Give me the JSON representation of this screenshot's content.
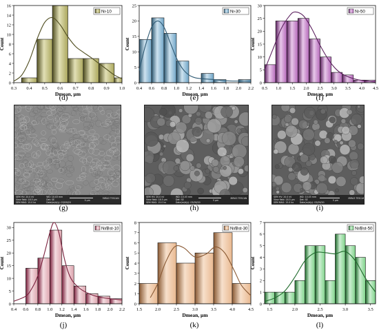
{
  "figure": {
    "panel_labels": [
      "(d)",
      "(e)",
      "(f)",
      "(g)",
      "(h)",
      "(i)",
      "(j)",
      "(k)",
      "(l)"
    ],
    "sem_images": [
      {
        "label": "(g)",
        "info_left_1": "SEM HV: 20.0 kV",
        "info_left_2": "View field: 18.5 µm",
        "info_left_3": "SEM MAG: 15.0 kx",
        "info_mid_1": "WD: 10.03 mm",
        "info_mid_2": "Det: SE",
        "info_mid_3": "Date(m/d/y): 03/09/20",
        "scale": "5 µm",
        "brand": "MIRA3 TESCAN"
      },
      {
        "label": "(h)",
        "info_left_1": "SEM HV: 20.0 kV",
        "info_left_2": "View field: 18.5 µm",
        "info_left_3": "SEM MAG: 15.0 kx",
        "info_mid_1": "WD: 10.03 mm",
        "info_mid_2": "Det: SE",
        "info_mid_3": "Date(m/d/y): 03/09/20",
        "scale": "5 µm",
        "brand": "MIRA3 TESCAN"
      },
      {
        "label": "(i)",
        "info_left_1": "SEM HV: 20.0 kV",
        "info_left_2": "View field: 18.5 µm",
        "info_left_3": "SEM MAG: 15.0 kx",
        "info_mid_1": "WD: 10.03 mm",
        "info_mid_2": "Det: SE",
        "info_mid_3": "Date(m/d/y): 03/09/20",
        "scale": "5 µm",
        "brand": "MIRA3 TESCAN"
      }
    ]
  },
  "chart_data": [
    {
      "type": "bar",
      "label": "(d)",
      "legend": "Ni-10",
      "xlabel": "Dmean, µm",
      "ylabel": "Count",
      "xlim": [
        0.3,
        1.0
      ],
      "ylim": [
        0,
        16
      ],
      "xticks": [
        "0.3",
        "0.4",
        "0.5",
        "0.6",
        "0.7",
        "0.8",
        "0.9",
        "1.0"
      ],
      "yticks": [
        "0",
        "2",
        "4",
        "6",
        "8",
        "10",
        "12",
        "14",
        "16"
      ],
      "bins": [
        [
          0.35,
          0.45,
          1
        ],
        [
          0.45,
          0.55,
          9
        ],
        [
          0.55,
          0.65,
          16
        ],
        [
          0.65,
          0.75,
          5
        ],
        [
          0.75,
          0.85,
          5
        ],
        [
          0.85,
          0.95,
          4
        ],
        [
          0.95,
          1.0,
          1
        ]
      ],
      "curve": [
        [
          0.3,
          0.3
        ],
        [
          0.35,
          1.5
        ],
        [
          0.4,
          4.5
        ],
        [
          0.45,
          9
        ],
        [
          0.5,
          12.5
        ],
        [
          0.55,
          13.5
        ],
        [
          0.6,
          12
        ],
        [
          0.65,
          9.5
        ],
        [
          0.7,
          7.5
        ],
        [
          0.75,
          6.3
        ],
        [
          0.8,
          5.2
        ],
        [
          0.85,
          4
        ],
        [
          0.9,
          2.8
        ],
        [
          0.95,
          1.6
        ],
        [
          1.0,
          0.8
        ]
      ],
      "color": "#aaa65c",
      "dark": "#514f22",
      "light": "#e2e0b6"
    },
    {
      "type": "bar",
      "label": "(e)",
      "legend": "Ni-30",
      "xlabel": "Dmean, µm",
      "ylabel": "Count",
      "xlim": [
        0.4,
        2.2
      ],
      "ylim": [
        0,
        25
      ],
      "xticks": [
        "0.4",
        "0.6",
        "0.8",
        "1.0",
        "1.2",
        "1.4",
        "1.6",
        "1.8",
        "2.0",
        "2.2"
      ],
      "yticks": [
        "0",
        "5",
        "10",
        "15",
        "20",
        "25"
      ],
      "bins": [
        [
          0.4,
          0.6,
          14
        ],
        [
          0.6,
          0.8,
          21
        ],
        [
          0.8,
          1.0,
          16
        ],
        [
          1.0,
          1.2,
          7
        ],
        [
          1.2,
          1.4,
          0
        ],
        [
          1.4,
          1.6,
          3
        ],
        [
          1.6,
          1.8,
          1
        ],
        [
          1.8,
          2.0,
          0
        ],
        [
          2.0,
          2.2,
          1
        ]
      ],
      "curve": [
        [
          0.4,
          4
        ],
        [
          0.5,
          12
        ],
        [
          0.6,
          18
        ],
        [
          0.7,
          20
        ],
        [
          0.8,
          18
        ],
        [
          0.9,
          13
        ],
        [
          1.0,
          8
        ],
        [
          1.1,
          4.5
        ],
        [
          1.2,
          2.5
        ],
        [
          1.3,
          1.6
        ],
        [
          1.4,
          1.3
        ],
        [
          1.6,
          1
        ],
        [
          1.8,
          0.6
        ],
        [
          2.0,
          0.5
        ],
        [
          2.2,
          0.5
        ]
      ],
      "color": "#6fa5c7",
      "dark": "#2f5a74",
      "light": "#cde2ef"
    },
    {
      "type": "bar",
      "label": "(f)",
      "legend": "Ni-50",
      "xlabel": "Dmean, µm",
      "ylabel": "Count",
      "xlim": [
        0.5,
        4.5
      ],
      "ylim": [
        0,
        30
      ],
      "xticks": [
        "0.5",
        "1.0",
        "1.5",
        "2.0",
        "2.5",
        "3.0",
        "3.5",
        "4.0",
        "4.5"
      ],
      "yticks": [
        "0",
        "5",
        "10",
        "15",
        "20",
        "25",
        "30"
      ],
      "bins": [
        [
          0.5,
          0.9,
          7
        ],
        [
          0.9,
          1.3,
          24
        ],
        [
          1.3,
          1.7,
          24
        ],
        [
          1.7,
          2.1,
          25
        ],
        [
          2.1,
          2.5,
          17
        ],
        [
          2.5,
          2.9,
          10
        ],
        [
          2.9,
          3.3,
          4
        ],
        [
          3.3,
          3.7,
          3
        ],
        [
          3.7,
          4.1,
          1
        ],
        [
          4.1,
          4.5,
          1
        ]
      ],
      "curve": [
        [
          0.5,
          5
        ],
        [
          0.8,
          13
        ],
        [
          1.1,
          21
        ],
        [
          1.4,
          26
        ],
        [
          1.6,
          27.5
        ],
        [
          1.9,
          26
        ],
        [
          2.2,
          21
        ],
        [
          2.5,
          14.5
        ],
        [
          2.8,
          9
        ],
        [
          3.1,
          5
        ],
        [
          3.4,
          2.8
        ],
        [
          3.8,
          1.3
        ],
        [
          4.2,
          0.6
        ],
        [
          4.5,
          0.3
        ]
      ],
      "color": "#b468b9",
      "dark": "#5c215f",
      "light": "#e8c8ea"
    },
    {
      "type": "bar",
      "label": "(j)",
      "legend": "Ni/Bst-10",
      "xlabel": "Dmean, µm",
      "ylabel": "Count",
      "xlim": [
        0.4,
        2.2
      ],
      "ylim": [
        0,
        32
      ],
      "xticks": [
        "0.4",
        "0.6",
        "0.8",
        "1.0",
        "1.2",
        "1.4",
        "1.6",
        "1.8",
        "2.0",
        "2.2"
      ],
      "yticks": [
        "0",
        "5",
        "10",
        "15",
        "20",
        "25",
        "30"
      ],
      "bins": [
        [
          0.6,
          0.8,
          14
        ],
        [
          0.8,
          1.0,
          18
        ],
        [
          1.0,
          1.2,
          29
        ],
        [
          1.2,
          1.4,
          15
        ],
        [
          1.4,
          1.6,
          7
        ],
        [
          1.6,
          1.8,
          4
        ],
        [
          1.8,
          2.0,
          3
        ],
        [
          2.0,
          2.2,
          2
        ]
      ],
      "curve": [
        [
          0.4,
          1
        ],
        [
          0.6,
          3
        ],
        [
          0.7,
          6
        ],
        [
          0.8,
          11
        ],
        [
          0.9,
          19
        ],
        [
          1.0,
          28
        ],
        [
          1.07,
          32
        ],
        [
          1.15,
          28
        ],
        [
          1.25,
          17
        ],
        [
          1.35,
          10
        ],
        [
          1.5,
          6
        ],
        [
          1.7,
          3.5
        ],
        [
          1.9,
          2.3
        ],
        [
          2.2,
          1.5
        ]
      ],
      "color": "#dca3ad",
      "dark": "#7a1f3c",
      "light": "#f4dde1"
    },
    {
      "type": "bar",
      "label": "(k)",
      "legend": "Ni/Bst-30",
      "xlabel": "Dmean, µm",
      "ylabel": "Count",
      "xlim": [
        1.5,
        4.5
      ],
      "ylim": [
        0,
        8
      ],
      "xticks": [
        "1.5",
        "2.0",
        "2.5",
        "3.0",
        "3.5",
        "4.0",
        "4.5"
      ],
      "yticks": [
        "0",
        "1",
        "2",
        "3",
        "4",
        "5",
        "6",
        "7",
        "8"
      ],
      "bins": [
        [
          1.5,
          2.0,
          2
        ],
        [
          2.0,
          2.5,
          6
        ],
        [
          2.5,
          3.0,
          4
        ],
        [
          3.0,
          3.5,
          5
        ],
        [
          3.5,
          4.0,
          7
        ],
        [
          4.0,
          4.5,
          2
        ]
      ],
      "curve": [
        [
          1.8,
          0.6
        ],
        [
          2.0,
          2
        ],
        [
          2.2,
          4
        ],
        [
          2.45,
          5.6
        ],
        [
          2.7,
          5.5
        ],
        [
          3.0,
          4.6
        ],
        [
          3.3,
          4.9
        ],
        [
          3.55,
          5.6
        ],
        [
          3.8,
          5
        ],
        [
          4.05,
          3.3
        ],
        [
          4.25,
          1.8
        ],
        [
          4.5,
          0.8
        ]
      ],
      "color": "#e9b88f",
      "dark": "#8a5a34",
      "light": "#f7e0cc"
    },
    {
      "type": "bar",
      "label": "(l)",
      "legend": "Ni/Bst-50",
      "xlabel": "Dmean, µm",
      "ylabel": "Count",
      "xlim": [
        1.4,
        3.6
      ],
      "ylim": [
        0,
        7
      ],
      "xticks": [
        "1.5",
        "2.0",
        "2.5",
        "3.0",
        "3.5"
      ],
      "yticks": [
        "0",
        "1",
        "2",
        "3",
        "4",
        "5",
        "6",
        "7"
      ],
      "bins": [
        [
          1.4,
          1.6,
          1
        ],
        [
          1.6,
          1.8,
          1
        ],
        [
          1.8,
          2.0,
          1
        ],
        [
          2.0,
          2.2,
          2
        ],
        [
          2.2,
          2.4,
          5
        ],
        [
          2.4,
          2.6,
          5
        ],
        [
          2.6,
          2.8,
          2
        ],
        [
          2.8,
          3.0,
          6
        ],
        [
          3.0,
          3.2,
          5
        ],
        [
          3.2,
          3.4,
          4
        ],
        [
          3.4,
          3.6,
          2
        ]
      ],
      "curve": [
        [
          1.4,
          0.2
        ],
        [
          1.6,
          0.5
        ],
        [
          1.8,
          1.1
        ],
        [
          2.0,
          2.3
        ],
        [
          2.2,
          3.7
        ],
        [
          2.4,
          4.4
        ],
        [
          2.6,
          4.4
        ],
        [
          2.8,
          4.3
        ],
        [
          3.0,
          4.5
        ],
        [
          3.2,
          3.7
        ],
        [
          3.4,
          2.2
        ],
        [
          3.6,
          1
        ]
      ],
      "color": "#7fd38a",
      "dark": "#1e6a2b",
      "light": "#cdeed2"
    }
  ]
}
